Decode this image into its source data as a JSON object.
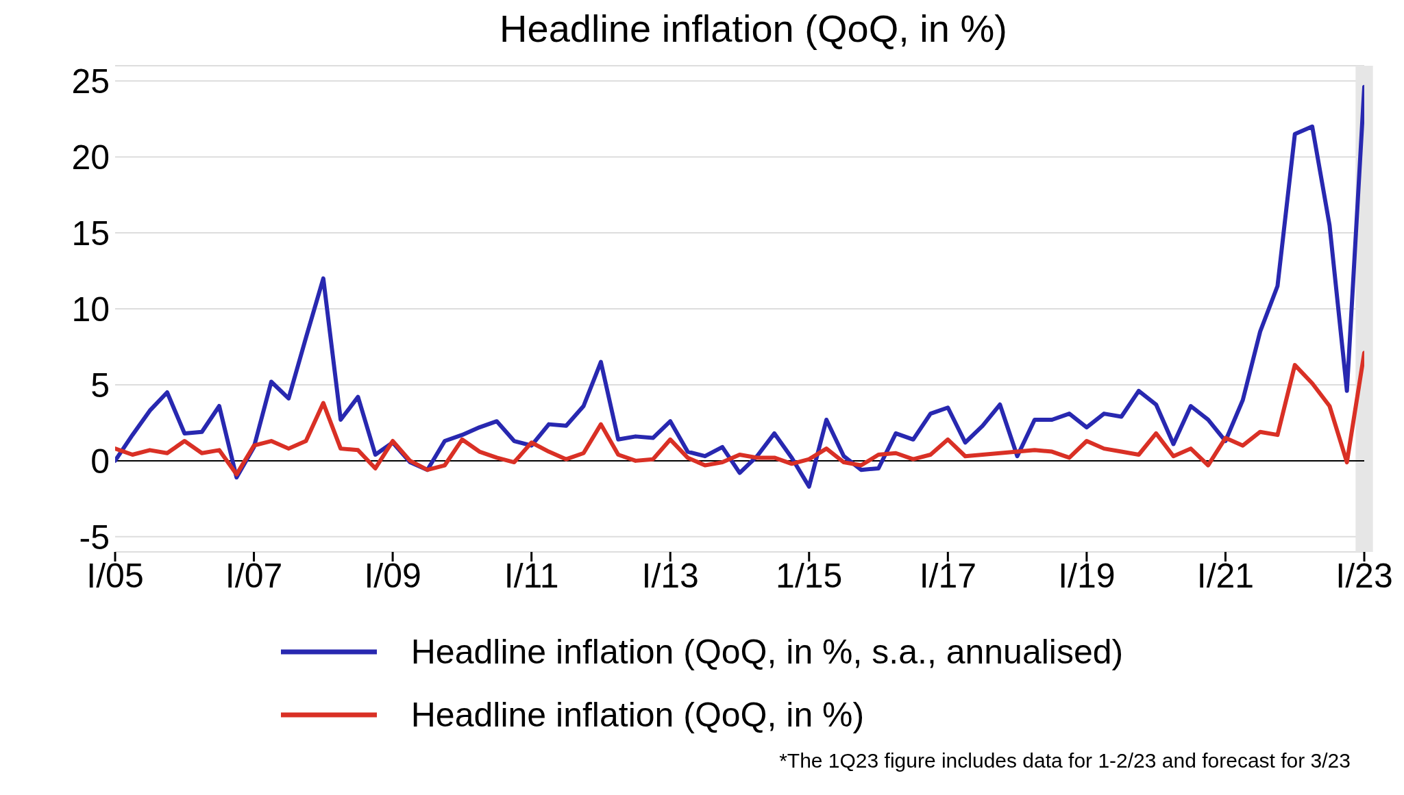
{
  "chart_data": {
    "type": "line",
    "title": "Headline inflation (QoQ, in %)",
    "categories": [
      "I/05",
      null,
      null,
      null,
      null,
      null,
      null,
      null,
      "I/07",
      null,
      null,
      null,
      null,
      null,
      null,
      null,
      "I/09",
      null,
      null,
      null,
      null,
      null,
      null,
      null,
      "I/11",
      null,
      null,
      null,
      null,
      null,
      null,
      null,
      "I/13",
      null,
      null,
      null,
      null,
      null,
      null,
      null,
      "1/15",
      null,
      null,
      null,
      null,
      null,
      null,
      null,
      "I/17",
      null,
      null,
      null,
      null,
      null,
      null,
      null,
      "I/19",
      null,
      null,
      null,
      null,
      null,
      null,
      null,
      "I/21",
      null,
      null,
      null,
      null,
      null,
      null,
      null,
      "I/23"
    ],
    "series": [
      {
        "name": "Headline inflation (QoQ, in %, s.a., annualised)",
        "color": "#2828b0",
        "values": [
          0,
          1.7,
          3.3,
          4.5,
          1.8,
          1.9,
          3.6,
          -1.1,
          0.9,
          5.2,
          4.1,
          8.1,
          12.0,
          2.7,
          4.2,
          0.4,
          1.2,
          -0.1,
          -0.6,
          1.3,
          1.7,
          2.2,
          2.6,
          1.3,
          1.0,
          2.4,
          2.3,
          3.6,
          6.5,
          1.4,
          1.6,
          1.5,
          2.6,
          0.6,
          0.3,
          0.9,
          -0.8,
          0.3,
          1.8,
          0.2,
          -1.7,
          2.7,
          0.3,
          -0.6,
          -0.5,
          1.8,
          1.4,
          3.1,
          3.5,
          1.2,
          2.3,
          3.7,
          0.3,
          2.7,
          2.7,
          3.1,
          2.2,
          3.1,
          2.9,
          4.6,
          3.7,
          1.1,
          3.6,
          2.7,
          1.3,
          4.0,
          8.5,
          11.5,
          21.5,
          22.0,
          15.5,
          4.6,
          24.6
        ]
      },
      {
        "name": "Headline inflation (QoQ, in %)",
        "color": "#d93025",
        "values": [
          0.8,
          0.4,
          0.7,
          0.5,
          1.3,
          0.5,
          0.7,
          -0.9,
          1.0,
          1.3,
          0.8,
          1.3,
          3.8,
          0.8,
          0.7,
          -0.5,
          1.3,
          0.0,
          -0.6,
          -0.3,
          1.4,
          0.6,
          0.2,
          -0.1,
          1.2,
          0.6,
          0.1,
          0.5,
          2.4,
          0.4,
          0.0,
          0.1,
          1.4,
          0.2,
          -0.3,
          -0.1,
          0.4,
          0.2,
          0.2,
          -0.2,
          0.1,
          0.8,
          -0.1,
          -0.3,
          0.4,
          0.5,
          0.1,
          0.4,
          1.4,
          0.3,
          0.4,
          0.5,
          0.6,
          0.7,
          0.6,
          0.2,
          1.3,
          0.8,
          0.6,
          0.4,
          1.8,
          0.3,
          0.8,
          -0.3,
          1.5,
          1.0,
          1.9,
          1.7,
          6.3,
          5.1,
          3.6,
          -0.1,
          7.1
        ]
      }
    ],
    "ylim": [
      -6,
      26
    ],
    "yticks": [
      -5,
      0,
      5,
      10,
      15,
      20,
      25
    ],
    "grid": "y",
    "legend": "bottom",
    "marker": "none",
    "line_style": "solid",
    "ref_lines": [
      {
        "axis": "y",
        "value": 0,
        "color": "#000000"
      }
    ],
    "bands": [
      {
        "axis": "x",
        "from": "I/23",
        "to": "I/23",
        "color": "#e6e6e6"
      }
    ],
    "annotations": [
      "*The 1Q23 figure includes data for 1-2/23 and forecast for 3/23"
    ]
  }
}
